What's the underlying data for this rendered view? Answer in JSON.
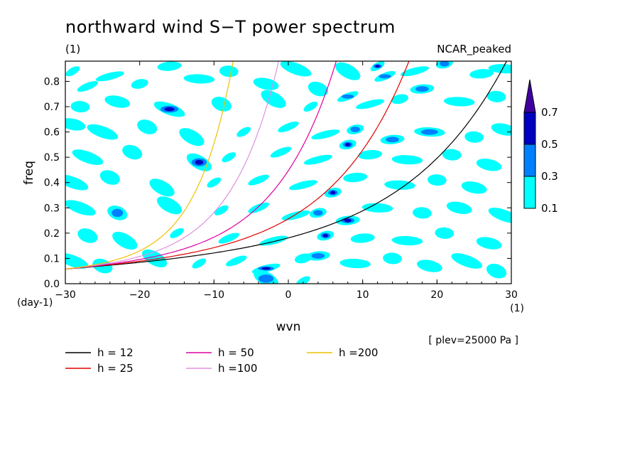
{
  "chart_data": {
    "type": "heatmap",
    "title": "northward wind S−T power spectrum",
    "unit_label": "(1)",
    "model_label": "NCAR_peaked",
    "xlabel": "wvn",
    "ylabel": "freq",
    "x_unit": "(1)",
    "y_unit": "(day-1)",
    "xlim": [
      -30,
      30
    ],
    "ylim": [
      0,
      0.88
    ],
    "x_ticks": [
      -30,
      -20,
      -10,
      0,
      10,
      20,
      30
    ],
    "y_ticks": [
      0.0,
      0.1,
      0.2,
      0.3,
      0.4,
      0.5,
      0.6,
      0.7,
      0.8
    ],
    "x_tick_labels": [
      "−30",
      "−20",
      "−10",
      "0",
      "10",
      "20",
      "30"
    ],
    "y_tick_labels": [
      "0.0",
      "0.1",
      "0.2",
      "0.3",
      "0.4",
      "0.5",
      "0.6",
      "0.7",
      "0.8"
    ],
    "colorbar": {
      "levels": [
        0.1,
        0.3,
        0.5,
        0.7
      ],
      "level_labels": [
        "0.1",
        "0.3",
        "0.5",
        "0.7"
      ],
      "colors": [
        "#00ffff",
        "#0080ff",
        "#0000c0",
        "#4000a0"
      ]
    },
    "note": "[ plev=25000 Pa ]",
    "dispersion_curves": [
      {
        "name": "h = 12",
        "h": 12,
        "color": "#000000"
      },
      {
        "name": "h = 25",
        "h": 25,
        "color": "#e00000"
      },
      {
        "name": "h = 50",
        "h": 50,
        "color": "#e000a0"
      },
      {
        "name": "h =100",
        "h": 100,
        "color": "#e090e0"
      },
      {
        "name": "h =200",
        "h": 200,
        "color": "#f0c000"
      }
    ],
    "contour_blobs": [
      {
        "x": -29,
        "y": 0.84,
        "level": 1
      },
      {
        "x": -27,
        "y": 0.78,
        "level": 1
      },
      {
        "x": -24,
        "y": 0.82,
        "level": 1
      },
      {
        "x": -20,
        "y": 0.79,
        "level": 1
      },
      {
        "x": -16,
        "y": 0.86,
        "level": 1
      },
      {
        "x": -12,
        "y": 0.81,
        "level": 1
      },
      {
        "x": -8,
        "y": 0.84,
        "level": 1
      },
      {
        "x": -3,
        "y": 0.79,
        "level": 1
      },
      {
        "x": 1,
        "y": 0.85,
        "level": 1
      },
      {
        "x": 4,
        "y": 0.77,
        "level": 1
      },
      {
        "x": 8,
        "y": 0.84,
        "level": 1
      },
      {
        "x": 12,
        "y": 0.86,
        "level": 3
      },
      {
        "x": 13,
        "y": 0.82,
        "level": 2
      },
      {
        "x": 17,
        "y": 0.84,
        "level": 1
      },
      {
        "x": 21,
        "y": 0.87,
        "level": 2
      },
      {
        "x": 26,
        "y": 0.83,
        "level": 1
      },
      {
        "x": 29,
        "y": 0.85,
        "level": 1
      },
      {
        "x": -28,
        "y": 0.7,
        "level": 1
      },
      {
        "x": -23,
        "y": 0.72,
        "level": 1
      },
      {
        "x": -16,
        "y": 0.69,
        "level": 3
      },
      {
        "x": -9,
        "y": 0.71,
        "level": 1
      },
      {
        "x": -2,
        "y": 0.73,
        "level": 1
      },
      {
        "x": 3,
        "y": 0.7,
        "level": 1
      },
      {
        "x": 8,
        "y": 0.74,
        "level": 2
      },
      {
        "x": 11,
        "y": 0.71,
        "level": 1
      },
      {
        "x": 15,
        "y": 0.73,
        "level": 1
      },
      {
        "x": 18,
        "y": 0.77,
        "level": 2
      },
      {
        "x": 23,
        "y": 0.72,
        "level": 1
      },
      {
        "x": 28,
        "y": 0.74,
        "level": 1
      },
      {
        "x": -29,
        "y": 0.63,
        "level": 1
      },
      {
        "x": -25,
        "y": 0.6,
        "level": 1
      },
      {
        "x": -19,
        "y": 0.62,
        "level": 1
      },
      {
        "x": -13,
        "y": 0.58,
        "level": 1
      },
      {
        "x": -6,
        "y": 0.6,
        "level": 1
      },
      {
        "x": 0,
        "y": 0.62,
        "level": 1
      },
      {
        "x": 5,
        "y": 0.59,
        "level": 1
      },
      {
        "x": 9,
        "y": 0.61,
        "level": 2
      },
      {
        "x": 14,
        "y": 0.57,
        "level": 2
      },
      {
        "x": 19,
        "y": 0.6,
        "level": 2
      },
      {
        "x": 25,
        "y": 0.58,
        "level": 1
      },
      {
        "x": 29,
        "y": 0.61,
        "level": 1
      },
      {
        "x": -27,
        "y": 0.5,
        "level": 1
      },
      {
        "x": -21,
        "y": 0.52,
        "level": 1
      },
      {
        "x": -12,
        "y": 0.48,
        "level": 3
      },
      {
        "x": -8,
        "y": 0.5,
        "level": 1
      },
      {
        "x": -1,
        "y": 0.52,
        "level": 1
      },
      {
        "x": 4,
        "y": 0.49,
        "level": 1
      },
      {
        "x": 8,
        "y": 0.55,
        "level": 3
      },
      {
        "x": 11,
        "y": 0.51,
        "level": 1
      },
      {
        "x": 16,
        "y": 0.49,
        "level": 1
      },
      {
        "x": 22,
        "y": 0.51,
        "level": 1
      },
      {
        "x": 27,
        "y": 0.47,
        "level": 1
      },
      {
        "x": -29,
        "y": 0.4,
        "level": 1
      },
      {
        "x": -24,
        "y": 0.42,
        "level": 1
      },
      {
        "x": -17,
        "y": 0.38,
        "level": 1
      },
      {
        "x": -10,
        "y": 0.4,
        "level": 1
      },
      {
        "x": -4,
        "y": 0.41,
        "level": 1
      },
      {
        "x": 2,
        "y": 0.39,
        "level": 1
      },
      {
        "x": 6,
        "y": 0.36,
        "level": 3
      },
      {
        "x": 9,
        "y": 0.42,
        "level": 1
      },
      {
        "x": 15,
        "y": 0.39,
        "level": 1
      },
      {
        "x": 20,
        "y": 0.41,
        "level": 1
      },
      {
        "x": 25,
        "y": 0.38,
        "level": 1
      },
      {
        "x": -28,
        "y": 0.3,
        "level": 1
      },
      {
        "x": -23,
        "y": 0.28,
        "level": 2
      },
      {
        "x": -16,
        "y": 0.31,
        "level": 1
      },
      {
        "x": -9,
        "y": 0.29,
        "level": 1
      },
      {
        "x": -4,
        "y": 0.3,
        "level": 1
      },
      {
        "x": 1,
        "y": 0.27,
        "level": 1
      },
      {
        "x": 4,
        "y": 0.28,
        "level": 2
      },
      {
        "x": 8,
        "y": 0.25,
        "level": 3
      },
      {
        "x": 12,
        "y": 0.3,
        "level": 1
      },
      {
        "x": 18,
        "y": 0.28,
        "level": 1
      },
      {
        "x": 23,
        "y": 0.3,
        "level": 1
      },
      {
        "x": 29,
        "y": 0.27,
        "level": 1
      },
      {
        "x": -27,
        "y": 0.19,
        "level": 1
      },
      {
        "x": -22,
        "y": 0.17,
        "level": 1
      },
      {
        "x": -15,
        "y": 0.2,
        "level": 1
      },
      {
        "x": -8,
        "y": 0.18,
        "level": 1
      },
      {
        "x": -2,
        "y": 0.17,
        "level": 1
      },
      {
        "x": 5,
        "y": 0.19,
        "level": 3
      },
      {
        "x": 10,
        "y": 0.18,
        "level": 1
      },
      {
        "x": 16,
        "y": 0.17,
        "level": 1
      },
      {
        "x": 21,
        "y": 0.2,
        "level": 1
      },
      {
        "x": 27,
        "y": 0.16,
        "level": 1
      },
      {
        "x": -29,
        "y": 0.09,
        "level": 1
      },
      {
        "x": -25,
        "y": 0.07,
        "level": 1
      },
      {
        "x": -18,
        "y": 0.1,
        "level": 1
      },
      {
        "x": -12,
        "y": 0.08,
        "level": 1
      },
      {
        "x": -7,
        "y": 0.09,
        "level": 1
      },
      {
        "x": -3,
        "y": 0.06,
        "level": 3
      },
      {
        "x": 2,
        "y": 0.1,
        "level": 1
      },
      {
        "x": 4,
        "y": 0.11,
        "level": 2
      },
      {
        "x": 9,
        "y": 0.08,
        "level": 1
      },
      {
        "x": 14,
        "y": 0.1,
        "level": 1
      },
      {
        "x": 19,
        "y": 0.07,
        "level": 1
      },
      {
        "x": 24,
        "y": 0.09,
        "level": 1
      },
      {
        "x": 28,
        "y": 0.05,
        "level": 1
      },
      {
        "x": -3,
        "y": 0.02,
        "level": 2
      },
      {
        "x": 2,
        "y": 0.01,
        "level": 1
      }
    ]
  }
}
